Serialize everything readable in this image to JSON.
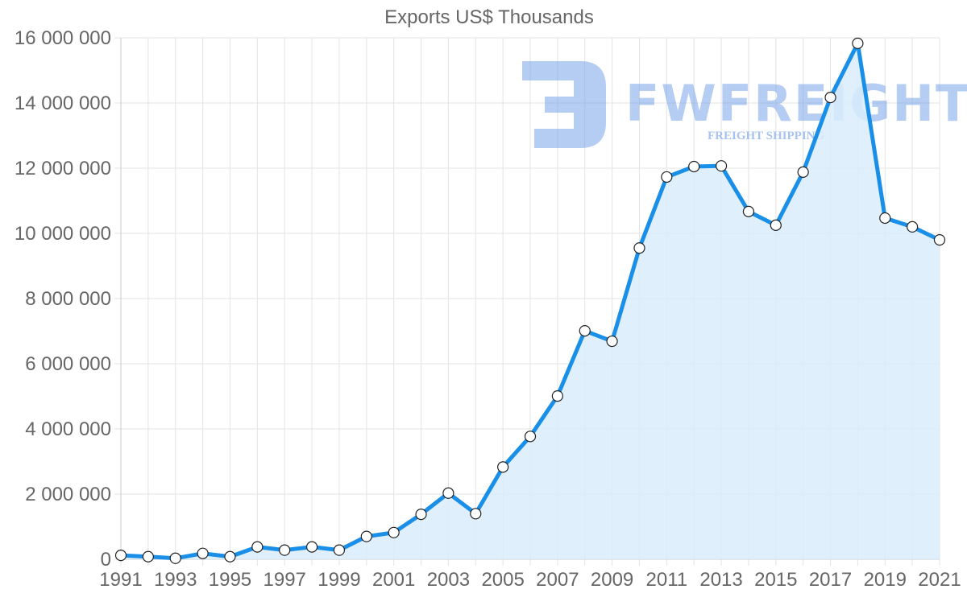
{
  "chart_data": {
    "type": "line",
    "title": "Exports US$ Thousands",
    "xlabel": "",
    "ylabel": "",
    "x": [
      1991,
      1992,
      1993,
      1994,
      1995,
      1996,
      1997,
      1998,
      1999,
      2000,
      2001,
      2002,
      2003,
      2004,
      2005,
      2006,
      2007,
      2008,
      2009,
      2010,
      2011,
      2012,
      2013,
      2014,
      2015,
      2016,
      2017,
      2018,
      2019,
      2020,
      2021
    ],
    "series": [
      {
        "name": "Exports US$ Thousands",
        "values": [
          120000,
          80000,
          30000,
          180000,
          80000,
          380000,
          280000,
          380000,
          280000,
          700000,
          820000,
          1380000,
          2030000,
          1400000,
          2830000,
          3770000,
          5010000,
          7010000,
          6690000,
          9550000,
          11730000,
          12050000,
          12070000,
          10670000,
          10250000,
          11880000,
          14170000,
          15830000,
          10470000,
          10200000,
          9800000
        ],
        "color": "#1a8fe8",
        "fill": "#d9ecfb"
      }
    ],
    "ylim": [
      0,
      16000000
    ],
    "y_ticks": [
      "0",
      "2 000 000",
      "4 000 000",
      "6 000 000",
      "8 000 000",
      "10 000 000",
      "12 000 000",
      "14 000 000",
      "16 000 000"
    ],
    "y_tick_values": [
      0,
      2000000,
      4000000,
      6000000,
      8000000,
      10000000,
      12000000,
      14000000,
      16000000
    ],
    "x_ticks": [
      "1991",
      "1993",
      "1995",
      "1997",
      "1999",
      "2001",
      "2003",
      "2005",
      "2007",
      "2009",
      "2011",
      "2013",
      "2015",
      "2017",
      "2019",
      "2021"
    ],
    "grid": true,
    "legend": "none",
    "filled_area": true
  },
  "watermark": {
    "brand": "FWFREIGHT",
    "tagline": "FREIGHT SHIPPING"
  }
}
